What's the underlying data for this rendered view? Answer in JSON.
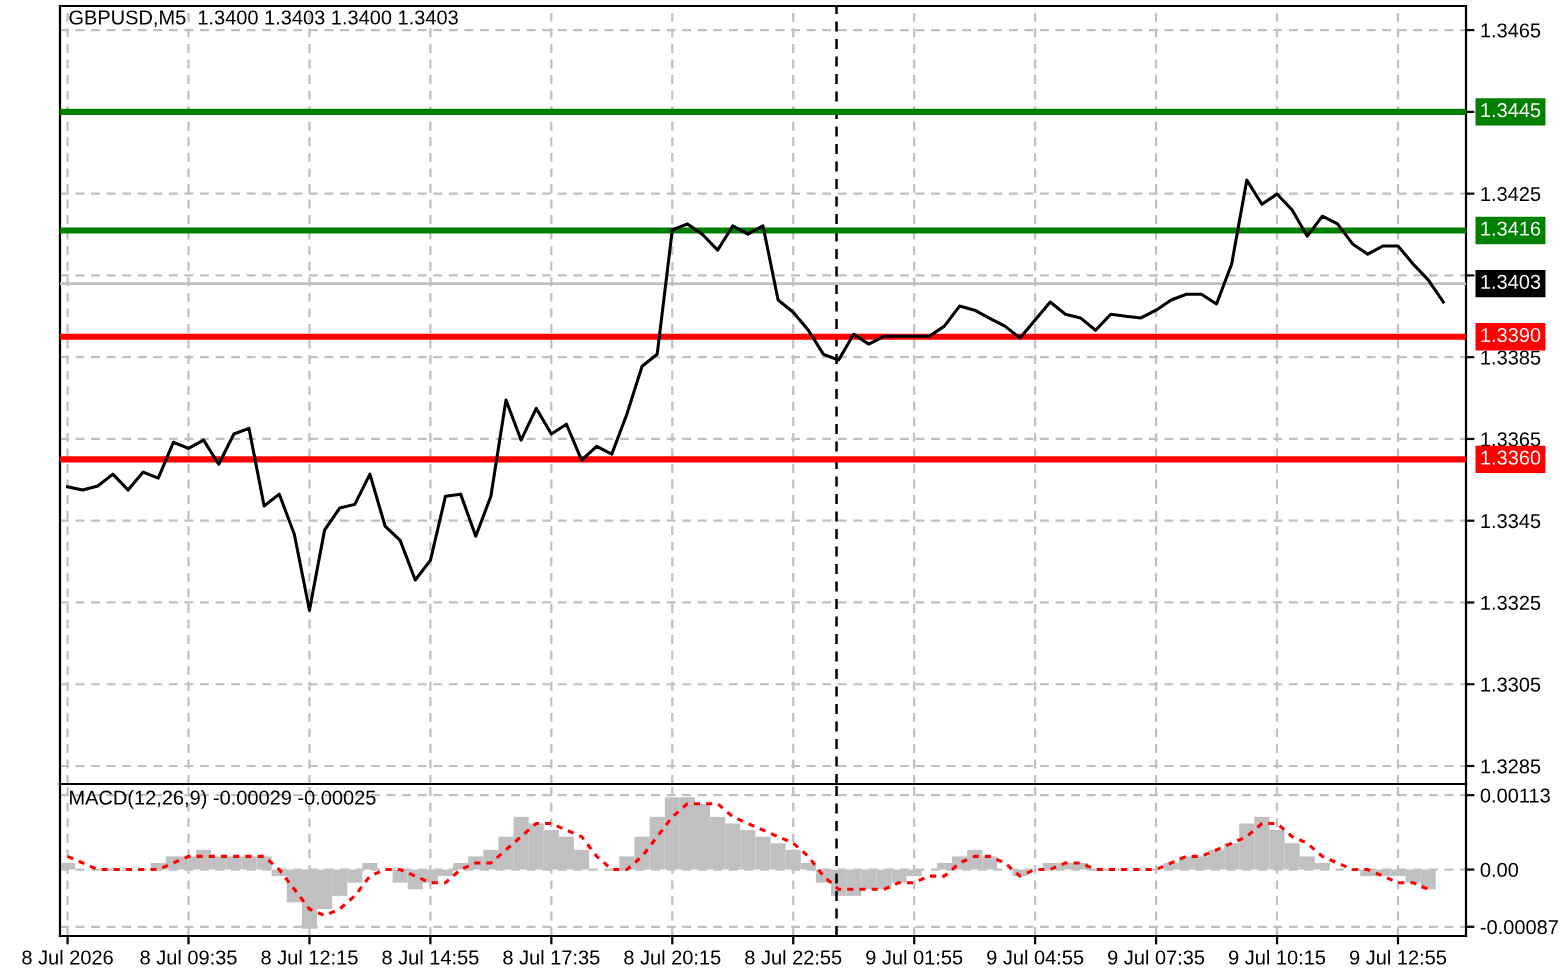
{
  "chart_data": [
    {
      "type": "line",
      "title": "GBPUSD,M5  1.3400 1.3403 1.3400 1.3403",
      "categories": [
        null,
        null,
        null,
        null,
        null,
        null,
        null,
        null,
        null,
        null,
        null,
        null,
        null,
        null,
        null,
        null,
        null,
        null,
        null,
        null,
        null,
        null,
        null,
        null,
        null,
        null,
        null,
        null,
        null,
        null,
        null,
        null,
        null,
        null,
        null,
        null,
        null,
        null,
        null,
        null,
        null,
        null,
        null,
        null,
        null,
        null,
        null,
        null,
        null,
        null,
        null,
        null,
        null,
        null,
        null,
        null,
        null,
        null,
        null,
        null,
        null,
        null,
        null,
        null,
        null,
        null,
        null,
        null,
        null,
        null,
        null,
        null,
        null,
        null,
        null,
        null,
        null,
        null,
        null,
        null,
        null,
        null,
        null,
        null,
        null,
        null,
        null,
        null,
        null,
        null,
        null,
        null,
        null
      ],
      "series": [
        {
          "color": "#000000",
          "values": [
            1.33533,
            1.33525,
            1.33535,
            1.33564,
            1.33525,
            1.33569,
            1.33554,
            1.33642,
            1.33627,
            1.33647,
            1.33588,
            1.33662,
            1.33676,
            1.33486,
            1.33515,
            1.33417,
            1.33231,
            1.33427,
            1.33481,
            1.3349,
            1.33564,
            1.33437,
            1.33402,
            1.33305,
            1.33353,
            1.3351,
            1.33515,
            1.33412,
            1.3351,
            1.33745,
            1.33647,
            1.33725,
            1.33662,
            1.33686,
            1.33598,
            1.33632,
            1.33613,
            1.33711,
            1.33828,
            1.33857,
            1.34161,
            1.34176,
            1.3415,
            1.34112,
            1.34171,
            1.34151,
            1.34171,
            1.3399,
            1.3396,
            1.33916,
            1.33857,
            1.33843,
            1.33906,
            1.33882,
            1.33901,
            1.33901,
            1.33901,
            1.33901,
            1.33926,
            1.33975,
            1.33965,
            1.33945,
            1.33926,
            1.33897,
            1.33941,
            1.33985,
            1.33955,
            1.33946,
            1.33916,
            1.33955,
            1.3395,
            1.33946,
            1.33965,
            1.3399,
            1.34004,
            1.34004,
            1.3398,
            1.34078,
            1.34283,
            1.34224,
            1.34249,
            1.3421,
            1.34146,
            1.34195,
            1.34176,
            1.34127,
            1.34102,
            1.34122,
            1.34122,
            1.34078,
            1.34039,
            1.33985,
            null
          ]
        }
      ],
      "ylim": [
        1.32806,
        1.34709
      ],
      "yticks": [
        1.3465,
        1.3445,
        1.3425,
        {
          "value": 1.3405,
          "label": null
        },
        1.3385,
        1.3365,
        1.3345,
        1.3325,
        1.3305,
        1.3285
      ],
      "ref_lines": [
        {
          "axis": "y",
          "value": 1.3445,
          "label": "1.3445",
          "color": "#008000"
        },
        {
          "axis": "y",
          "value": 1.3416,
          "label": "1.3416",
          "color": "#008000"
        },
        {
          "axis": "y",
          "value": 1.3403,
          "label": "1.3403",
          "color": "#c0c0c0"
        },
        {
          "axis": "y",
          "value": 1.339,
          "label": "1.3390",
          "color": "#ff0000"
        },
        {
          "axis": "y",
          "value": 1.336,
          "label": "1.3360",
          "color": "#ff0000"
        }
      ],
      "grid": true,
      "tick_labels": "y"
    },
    {
      "type": "bar",
      "title": "MACD(12,26,9) -0.00029 -0.00025",
      "categories": [
        "8 Jul 2026",
        null,
        null,
        null,
        null,
        null,
        null,
        null,
        "8 Jul 09:35",
        null,
        null,
        null,
        null,
        null,
        null,
        null,
        "8 Jul 12:15",
        null,
        null,
        null,
        null,
        null,
        null,
        null,
        "8 Jul 14:55",
        null,
        null,
        null,
        null,
        null,
        null,
        null,
        "8 Jul 17:35",
        null,
        null,
        null,
        null,
        null,
        null,
        null,
        "8 Jul 20:15",
        null,
        null,
        null,
        null,
        null,
        null,
        null,
        "8 Jul 22:55",
        null,
        null,
        null,
        null,
        null,
        null,
        null,
        "9 Jul 01:55",
        null,
        null,
        null,
        null,
        null,
        null,
        null,
        "9 Jul 04:55",
        null,
        null,
        null,
        null,
        null,
        null,
        null,
        "9 Jul 07:35",
        null,
        null,
        null,
        null,
        null,
        null,
        null,
        "9 Jul 10:15",
        null,
        null,
        null,
        null,
        null,
        null,
        null,
        "9 Jul 12:55",
        null,
        null,
        null,
        null
      ],
      "series": [
        {
          "type": "bar",
          "color": "#c0c0c0",
          "values": [
            0.0001,
            0.0,
            0.0,
            0.0,
            0.0,
            0.0,
            0.0001,
            0.0002,
            0.0002,
            0.0003,
            0.0002,
            0.0002,
            0.0002,
            0.0002,
            -0.0001,
            -0.0005,
            -0.0009,
            -0.0006,
            -0.0004,
            -0.0002,
            0.0001,
            0.0,
            -0.0002,
            -0.0003,
            -0.0002,
            -0.0001,
            0.0001,
            0.0002,
            0.0003,
            0.0005,
            0.0008,
            0.0007,
            0.0006,
            0.0005,
            0.0003,
            0.0,
            0.0,
            0.0002,
            0.0005,
            0.0008,
            0.0011,
            0.0011,
            0.001,
            0.0008,
            0.0007,
            0.0006,
            0.0005,
            0.0004,
            0.0003,
            0.0001,
            -0.0002,
            -0.0004,
            -0.0004,
            -0.0003,
            -0.0003,
            -0.0002,
            -0.0001,
            0.0,
            0.0001,
            0.0002,
            0.0003,
            0.0002,
            0.0,
            -0.0001,
            0.0,
            0.0001,
            0.0001,
            0.0001,
            0.0,
            0.0,
            0.0,
            0.0,
            0.0,
            0.0001,
            0.0002,
            0.0002,
            0.0003,
            0.0004,
            0.0007,
            0.0008,
            0.0006,
            0.0004,
            0.0002,
            0.0001,
            0.0,
            0.0,
            -0.0001,
            -0.0001,
            -0.0001,
            -0.0002,
            -0.0003,
            null,
            null
          ]
        },
        {
          "type": "line",
          "color": "#ff0000",
          "line_style": "dotted",
          "values": [
            0.0002,
            0.0001,
            0.0,
            0.0,
            0.0,
            0.0,
            0.0,
            0.0001,
            0.0002,
            0.0002,
            0.0002,
            0.0002,
            0.0002,
            0.0002,
            0.0,
            -0.0003,
            -0.0006,
            -0.0007,
            -0.0006,
            -0.0004,
            -0.0001,
            0.0,
            0.0,
            -0.0001,
            -0.0002,
            -0.0002,
            0.0,
            0.0001,
            0.0001,
            0.0003,
            0.0005,
            0.0007,
            0.0007,
            0.0006,
            0.0005,
            0.0002,
            0.0,
            0.0,
            0.0002,
            0.0005,
            0.0008,
            0.001,
            0.001,
            0.001,
            0.0008,
            0.0007,
            0.0006,
            0.0005,
            0.0004,
            0.0002,
            -0.0001,
            -0.0003,
            -0.0003,
            -0.0003,
            -0.0003,
            -0.0002,
            -0.0002,
            -0.0001,
            -0.0001,
            0.0001,
            0.0002,
            0.0002,
            0.0001,
            -0.0001,
            0.0,
            0.0,
            0.0001,
            0.0001,
            0.0,
            0.0,
            0.0,
            0.0,
            0.0,
            0.0001,
            0.0002,
            0.0002,
            0.0003,
            0.0004,
            0.0005,
            0.0007,
            0.0007,
            0.0005,
            0.0004,
            0.0002,
            0.0001,
            0.0,
            0.0,
            -0.0001,
            -0.0002,
            -0.0002,
            -0.0003,
            null,
            null
          ]
        }
      ],
      "ylim": [
        -0.00101,
        0.0013
      ],
      "yticks": [
        {
          "value": 0.00113,
          "label": "0.00113"
        },
        {
          "value": 0.0,
          "label": "0.00"
        },
        {
          "value": -0.00087,
          "label": "-0.00087"
        }
      ],
      "grid": true
    }
  ]
}
